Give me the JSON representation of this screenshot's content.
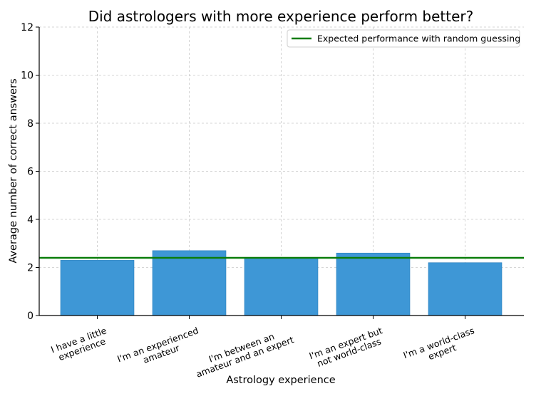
{
  "chart_data": {
    "type": "bar",
    "title": "Did astrologers with more experience perform better?",
    "xlabel": "Astrology experience",
    "ylabel": "Average number of correct answers",
    "categories": [
      [
        "I have a little",
        "experience"
      ],
      [
        "I'm an experienced",
        "amateur"
      ],
      [
        "I'm between an",
        "amateur and an expert"
      ],
      [
        "I'm an expert but",
        "not world-class"
      ],
      [
        "I'm a world-class",
        "expert"
      ]
    ],
    "values": [
      2.3,
      2.7,
      2.4,
      2.6,
      2.2
    ],
    "ylim": [
      0,
      12
    ],
    "yticks": [
      "0",
      "2",
      "4",
      "6",
      "8",
      "10",
      "12"
    ],
    "reference_line": {
      "name": "Expected performance with random guessing",
      "value": 2.4
    },
    "grid": true,
    "legend_position": "top-right",
    "colors": {
      "bar": "#3e97d6",
      "bar_edge": "#2a7fbd",
      "reference_line": "#0a7d0a",
      "grid": "#c8c8c8"
    }
  }
}
